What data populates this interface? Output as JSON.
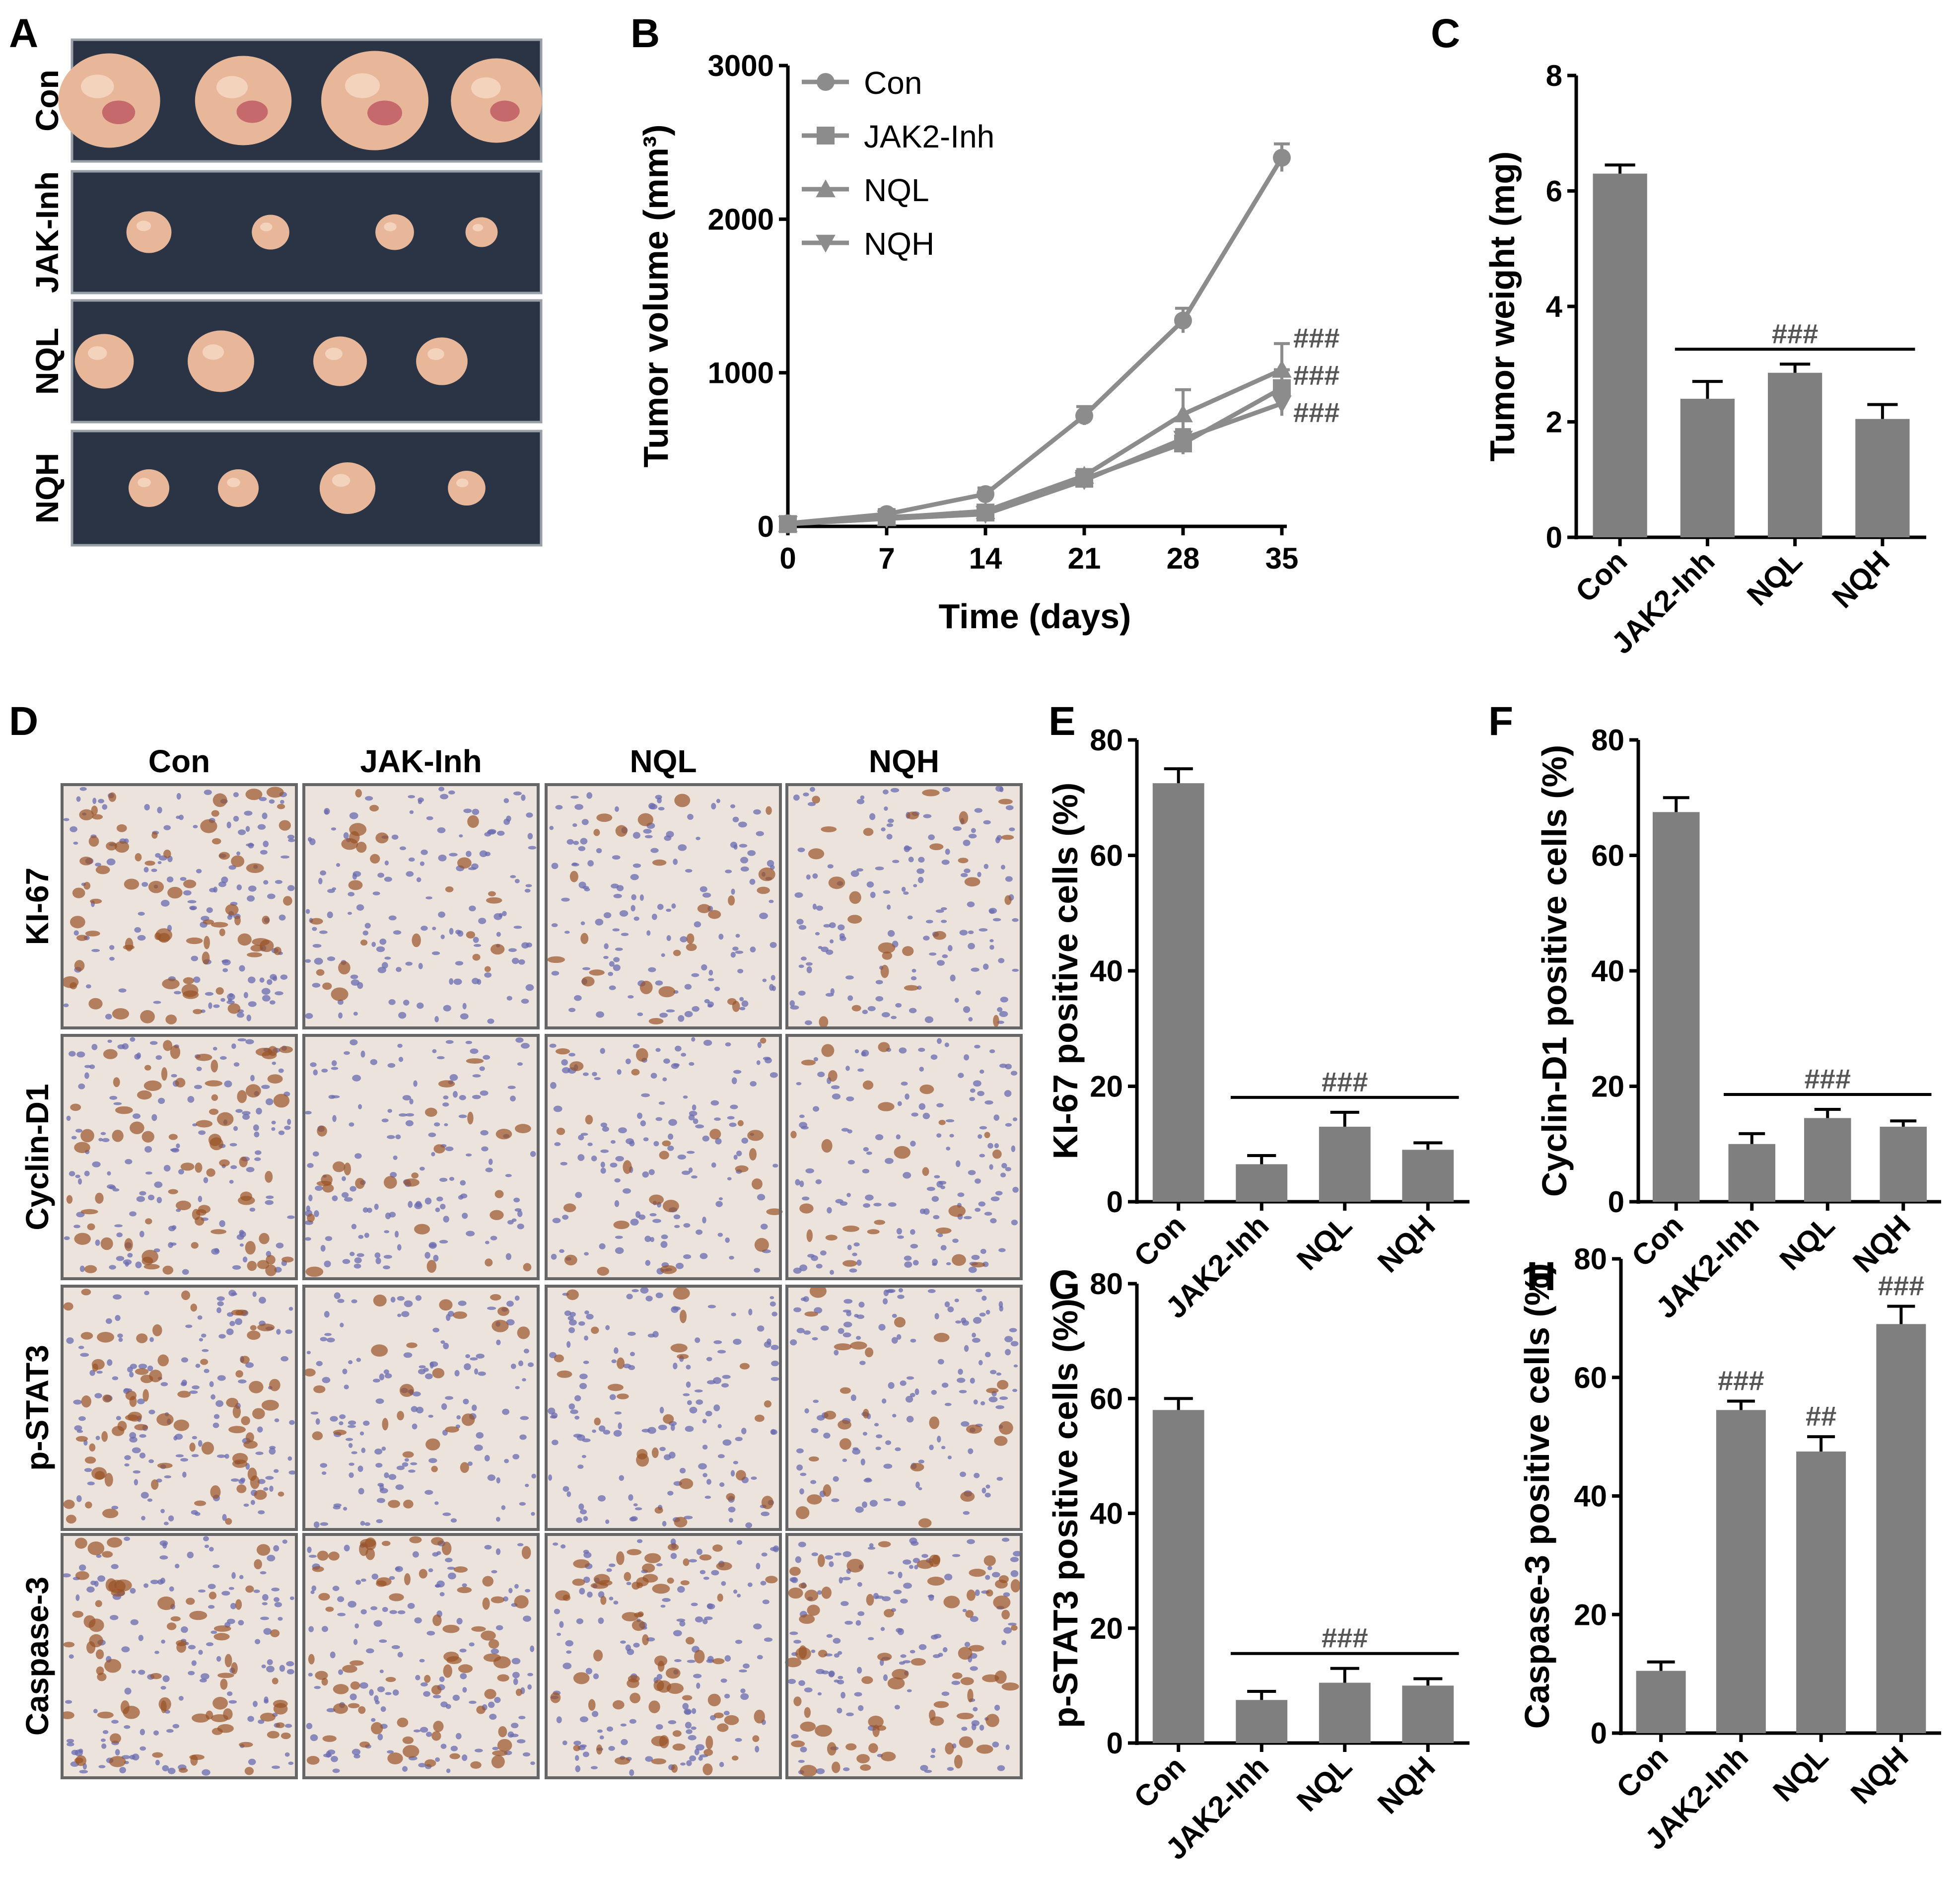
{
  "panels": {
    "A": {
      "letter": "A",
      "rows": [
        "Con",
        "JAK-Inh",
        "NQL",
        "NQH"
      ]
    },
    "D": {
      "letter": "D",
      "columns": [
        "Con",
        "JAK-Inh",
        "NQL",
        "NQH"
      ],
      "rows": [
        "KI-67",
        "Cyclin-D1",
        "p-STAT3",
        "Caspase-3"
      ]
    }
  },
  "colors": {
    "bar": "#7f7f7f",
    "line": "#8c8c8c",
    "tumor_bg": "#2b3444",
    "tumor": "#e8b79a",
    "ihc_bg": "#ece4dc",
    "ihc_blue": "#6a6bb0",
    "ihc_brown": "#9a5226"
  },
  "chart_data": [
    {
      "panel": "B",
      "type": "line",
      "xlabel": "Time (days)",
      "ylabel": "Tumor volume (mm³)",
      "x": [
        0,
        7,
        14,
        21,
        28,
        35
      ],
      "xticks": [
        "0",
        "7",
        "14",
        "21",
        "28",
        "35"
      ],
      "yticks": [
        "0",
        "1000",
        "2000",
        "3000"
      ],
      "ylim": [
        0,
        3000
      ],
      "series": [
        {
          "name": "Con",
          "marker": "circle",
          "values": [
            20,
            80,
            210,
            720,
            1340,
            2400
          ],
          "errors": [
            15,
            30,
            40,
            60,
            80,
            90
          ]
        },
        {
          "name": "JAK2-Inh",
          "marker": "square",
          "values": [
            15,
            60,
            90,
            310,
            540,
            900
          ],
          "errors": [
            10,
            20,
            30,
            40,
            70,
            120
          ]
        },
        {
          "name": "NQL",
          "marker": "triangle-up",
          "values": [
            15,
            55,
            100,
            330,
            730,
            1020
          ],
          "errors": [
            10,
            20,
            30,
            40,
            160,
            170
          ]
        },
        {
          "name": "NQH",
          "marker": "triangle-down",
          "values": [
            15,
            50,
            80,
            300,
            570,
            800
          ],
          "errors": [
            10,
            20,
            30,
            40,
            60,
            80
          ]
        }
      ],
      "annotations": [
        "###",
        "###",
        "###"
      ],
      "legend": "top-left"
    },
    {
      "panel": "C",
      "type": "bar",
      "categories": [
        "Con",
        "JAK2-Inh",
        "NQL",
        "NQH"
      ],
      "values": [
        6.3,
        2.4,
        2.85,
        2.05
      ],
      "errors": [
        0.15,
        0.3,
        0.15,
        0.25
      ],
      "ylabel": "Tumor weight (mg)",
      "yticks": [
        "0",
        "2",
        "4",
        "6",
        "8"
      ],
      "ylim": [
        0,
        8
      ],
      "annotation": "###"
    },
    {
      "panel": "E",
      "type": "bar",
      "categories": [
        "Con",
        "JAK2-Inh",
        "NQL",
        "NQH"
      ],
      "values": [
        72.5,
        6.5,
        13,
        9
      ],
      "errors": [
        2.5,
        1.5,
        2.5,
        1.2
      ],
      "ylabel": "KI-67 positive cells (%)",
      "yticks": [
        "0",
        "20",
        "40",
        "60",
        "80"
      ],
      "ylim": [
        0,
        80
      ],
      "annotation": "###"
    },
    {
      "panel": "F",
      "type": "bar",
      "categories": [
        "Con",
        "JAK2-Inh",
        "NQL",
        "NQH"
      ],
      "values": [
        67.5,
        10,
        14.5,
        13
      ],
      "errors": [
        2.5,
        1.8,
        1.5,
        1
      ],
      "ylabel": "Cyclin-D1 positive cells (%)",
      "yticks": [
        "0",
        "20",
        "40",
        "60",
        "80"
      ],
      "ylim": [
        0,
        80
      ],
      "annotation": "###"
    },
    {
      "panel": "G",
      "type": "bar",
      "categories": [
        "Con",
        "JAK2-Inh",
        "NQL",
        "NQH"
      ],
      "values": [
        58,
        7.5,
        10.5,
        10
      ],
      "errors": [
        2,
        1.5,
        2.5,
        1.2
      ],
      "ylabel": "p-STAT3 positive cells (%)",
      "yticks": [
        "0",
        "20",
        "40",
        "60",
        "80"
      ],
      "ylim": [
        0,
        80
      ],
      "annotation": "###"
    },
    {
      "panel": "H",
      "type": "bar",
      "categories": [
        "Con",
        "JAK2-Inh",
        "NQL",
        "NQH"
      ],
      "values": [
        10.5,
        54.5,
        47.5,
        69
      ],
      "errors": [
        1.5,
        1.5,
        2.5,
        3
      ],
      "ylabel": "Caspase-3 positive cells (%)",
      "yticks": [
        "0",
        "20",
        "40",
        "60",
        "80"
      ],
      "ylim": [
        0,
        80
      ],
      "bar_annotations": [
        "",
        "###",
        "##",
        "###"
      ]
    }
  ]
}
